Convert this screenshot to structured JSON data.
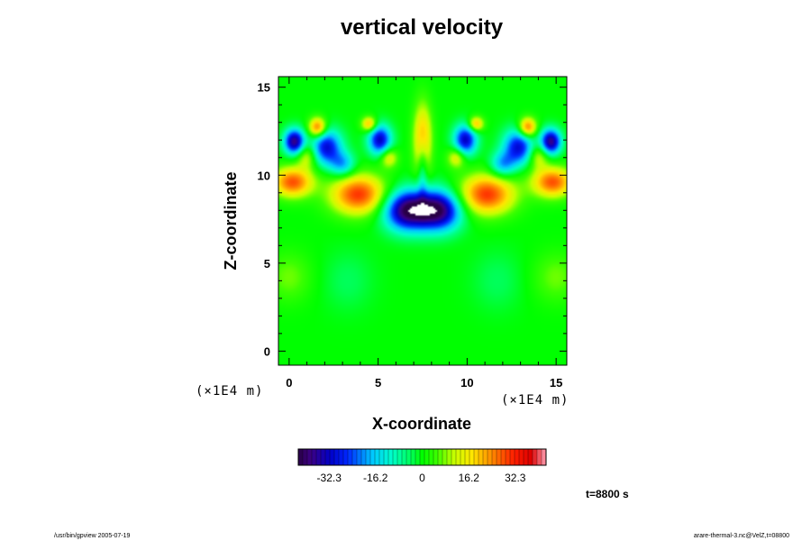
{
  "chart_data": {
    "type": "heatmap",
    "title": "vertical velocity",
    "xlabel": "X-coordinate",
    "ylabel": "Z-coordinate",
    "x_unit": "(×1E4 m)",
    "z_unit": "(×1E4 m)",
    "xlim": [
      -0.6,
      15.6
    ],
    "ylim": [
      -0.8,
      15.6
    ],
    "x_ticks": [
      0,
      5,
      10,
      15
    ],
    "y_ticks": [
      0,
      5,
      10,
      15
    ],
    "colorbar": {
      "range": [
        -43,
        43
      ],
      "tick_values": [
        -32.3,
        -16.2,
        0,
        16.2,
        32.3
      ],
      "tick_labels": [
        "-32.3",
        "-16.2",
        "0",
        "16.2",
        "32.3"
      ]
    },
    "time_label": "t=8800 s",
    "features": [
      {
        "x": 7.5,
        "z": 12.0,
        "w": 0.6,
        "sx": 0.35,
        "sz": 1.4
      },
      {
        "x": 6.6,
        "z": 8.0,
        "w": -1.0,
        "sx": 0.9,
        "sz": 0.8
      },
      {
        "x": 8.4,
        "z": 8.0,
        "w": -1.0,
        "sx": 0.9,
        "sz": 0.8
      },
      {
        "x": 7.5,
        "z": 10.5,
        "w": -0.35,
        "sx": 0.2,
        "sz": 1.3
      },
      {
        "x": 3.9,
        "z": 8.9,
        "w": 0.75,
        "sx": 1.1,
        "sz": 0.8
      },
      {
        "x": 11.1,
        "z": 8.9,
        "w": 0.75,
        "sx": 1.1,
        "sz": 0.8
      },
      {
        "x": 0.2,
        "z": 9.6,
        "w": 0.7,
        "sx": 0.8,
        "sz": 0.6
      },
      {
        "x": 14.8,
        "z": 9.6,
        "w": 0.7,
        "sx": 0.8,
        "sz": 0.6
      },
      {
        "x": 0.3,
        "z": 11.9,
        "w": -0.95,
        "sx": 0.4,
        "sz": 0.5
      },
      {
        "x": 14.7,
        "z": 11.9,
        "w": -0.95,
        "sx": 0.4,
        "sz": 0.5
      },
      {
        "x": 2.1,
        "z": 11.6,
        "w": -0.75,
        "sx": 0.6,
        "sz": 0.7
      },
      {
        "x": 12.9,
        "z": 11.6,
        "w": -0.75,
        "sx": 0.6,
        "sz": 0.7
      },
      {
        "x": 5.1,
        "z": 12.0,
        "w": -0.8,
        "sx": 0.45,
        "sz": 0.6
      },
      {
        "x": 9.9,
        "z": 12.0,
        "w": -0.8,
        "sx": 0.45,
        "sz": 0.6
      },
      {
        "x": 1.6,
        "z": 12.7,
        "w": 0.7,
        "sx": 0.35,
        "sz": 0.4
      },
      {
        "x": 13.4,
        "z": 12.7,
        "w": 0.7,
        "sx": 0.35,
        "sz": 0.4
      },
      {
        "x": 4.5,
        "z": 12.9,
        "w": 0.55,
        "sx": 0.3,
        "sz": 0.3
      },
      {
        "x": 10.5,
        "z": 12.9,
        "w": 0.55,
        "sx": 0.3,
        "sz": 0.3
      },
      {
        "x": 3.0,
        "z": 10.6,
        "w": -0.45,
        "sx": 0.5,
        "sz": 0.5
      },
      {
        "x": 12.0,
        "z": 10.6,
        "w": -0.45,
        "sx": 0.5,
        "sz": 0.5
      },
      {
        "x": 5.6,
        "z": 11.0,
        "w": 0.4,
        "sx": 0.35,
        "sz": 0.4
      },
      {
        "x": 9.4,
        "z": 11.0,
        "w": 0.4,
        "sx": 0.35,
        "sz": 0.4
      },
      {
        "x": 1.0,
        "z": 11.1,
        "w": 0.35,
        "sx": 0.4,
        "sz": 0.5
      },
      {
        "x": 14.0,
        "z": 11.1,
        "w": 0.35,
        "sx": 0.4,
        "sz": 0.5
      },
      {
        "x": 0.0,
        "z": 4.2,
        "w": 0.18,
        "sx": 0.9,
        "sz": 1.0
      },
      {
        "x": 15.0,
        "z": 4.2,
        "w": 0.18,
        "sx": 0.9,
        "sz": 1.0
      },
      {
        "x": 3.3,
        "z": 4.0,
        "w": -0.1,
        "sx": 1.0,
        "sz": 1.2
      },
      {
        "x": 11.7,
        "z": 4.0,
        "w": -0.1,
        "sx": 1.0,
        "sz": 1.2
      }
    ]
  },
  "footer": {
    "left": "/usr/bin/gpview 2005-07-19",
    "right": "arare-thermal-3.nc@VelZ,t=08800"
  }
}
